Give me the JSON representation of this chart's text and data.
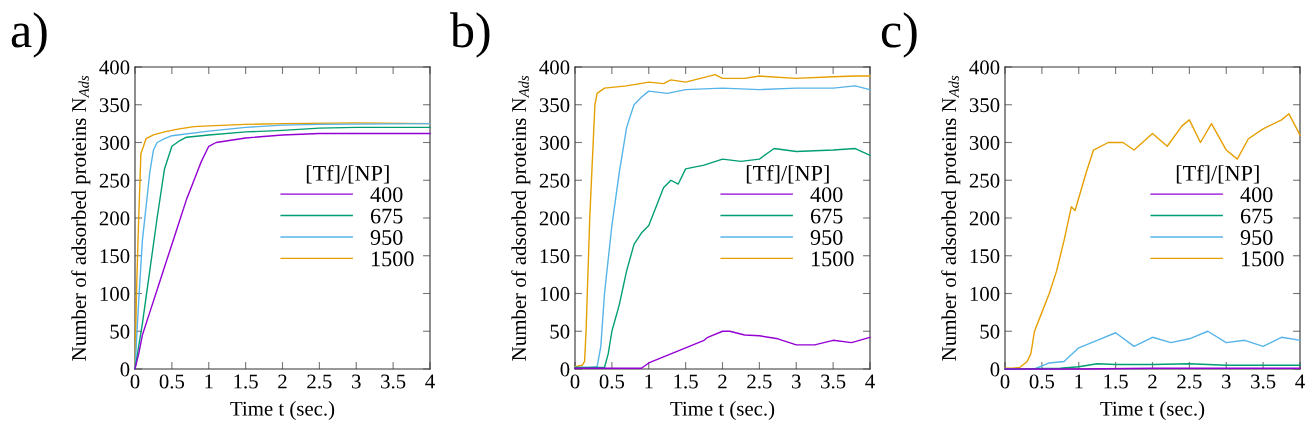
{
  "chart_data": [
    {
      "type": "line",
      "title": "a)",
      "xlabel": "Time t (sec.)",
      "ylabel": "Number of adsorbed proteins N$_{Ads}$",
      "legend_title": "[Tf]/[NP]",
      "legend": "right",
      "grid": false,
      "xlim": [
        0,
        4
      ],
      "xticks": [
        0,
        0.5,
        1,
        1.5,
        2,
        2.5,
        3,
        3.5,
        4
      ],
      "ylim": [
        0,
        400
      ],
      "yticks": [
        0,
        50,
        100,
        150,
        200,
        250,
        300,
        350,
        400
      ],
      "series": [
        {
          "name": "400",
          "color": "#9400d3",
          "x": [
            0,
            0.05,
            0.1,
            0.2,
            0.3,
            0.4,
            0.5,
            0.6,
            0.7,
            0.8,
            0.9,
            1.0,
            1.1,
            1.3,
            1.5,
            2,
            2.5,
            3,
            4
          ],
          "values": [
            0,
            20,
            45,
            75,
            105,
            135,
            165,
            195,
            225,
            250,
            275,
            295,
            300,
            303,
            306,
            310,
            312,
            312,
            312
          ]
        },
        {
          "name": "675",
          "color": "#009e73",
          "x": [
            0,
            0.1,
            0.2,
            0.3,
            0.4,
            0.5,
            0.6,
            0.7,
            1,
            1.5,
            2,
            2.5,
            3,
            4
          ],
          "values": [
            0,
            60,
            130,
            200,
            265,
            295,
            302,
            307,
            310,
            314,
            316,
            319,
            320,
            320
          ]
        },
        {
          "name": "950",
          "color": "#56b4e9",
          "x": [
            0,
            0.05,
            0.1,
            0.2,
            0.25,
            0.3,
            0.4,
            0.5,
            1,
            1.5,
            2,
            2.5,
            4
          ],
          "values": [
            0,
            90,
            170,
            260,
            290,
            300,
            305,
            309,
            315,
            320,
            323,
            324,
            325
          ]
        },
        {
          "name": "1500",
          "color": "#e69f00",
          "x": [
            0,
            0.02,
            0.05,
            0.08,
            0.15,
            0.25,
            0.4,
            0.6,
            0.8,
            1,
            1.5,
            2,
            3,
            4
          ],
          "values": [
            0,
            100,
            200,
            285,
            305,
            310,
            314,
            318,
            321,
            322,
            324,
            325,
            326,
            325
          ]
        }
      ]
    },
    {
      "type": "line",
      "title": "b)",
      "xlabel": "Time t (sec.)",
      "ylabel": "Number of adsorbed proteins N$_{Ads}$",
      "legend_title": "[Tf]/[NP]",
      "legend": "right",
      "grid": false,
      "xlim": [
        0,
        4
      ],
      "xticks": [
        0,
        0.5,
        1,
        1.5,
        2,
        2.5,
        3,
        3.5,
        4
      ],
      "ylim": [
        0,
        400
      ],
      "yticks": [
        0,
        50,
        100,
        150,
        200,
        250,
        300,
        350,
        400
      ],
      "series": [
        {
          "name": "400",
          "color": "#9400d3",
          "x": [
            0,
            0.5,
            0.75,
            0.9,
            1,
            1.25,
            1.5,
            1.75,
            1.8,
            2,
            2.1,
            2.3,
            2.5,
            2.75,
            3,
            3.25,
            3.5,
            3.75,
            4
          ],
          "values": [
            1,
            1,
            1,
            1,
            8,
            18,
            28,
            38,
            42,
            50,
            50,
            45,
            44,
            40,
            32,
            32,
            38,
            35,
            42
          ]
        },
        {
          "name": "675",
          "color": "#009e73",
          "x": [
            0,
            0.4,
            0.45,
            0.5,
            0.6,
            0.7,
            0.8,
            0.9,
            1,
            1.1,
            1.2,
            1.3,
            1.4,
            1.5,
            1.75,
            2,
            2.25,
            2.5,
            2.7,
            3,
            3.5,
            3.8,
            4
          ],
          "values": [
            2,
            2,
            20,
            50,
            85,
            130,
            165,
            180,
            190,
            215,
            240,
            250,
            245,
            265,
            270,
            278,
            275,
            278,
            292,
            288,
            290,
            292,
            283
          ]
        },
        {
          "name": "950",
          "color": "#56b4e9",
          "x": [
            0,
            0.2,
            0.3,
            0.35,
            0.4,
            0.5,
            0.6,
            0.7,
            0.8,
            0.9,
            1,
            1.25,
            1.5,
            2,
            2.5,
            3,
            3.5,
            3.8,
            4
          ],
          "values": [
            2,
            2,
            3,
            30,
            100,
            190,
            260,
            320,
            350,
            360,
            368,
            365,
            370,
            372,
            370,
            372,
            372,
            375,
            370
          ]
        },
        {
          "name": "1500",
          "color": "#e69f00",
          "x": [
            0,
            0.1,
            0.13,
            0.15,
            0.2,
            0.27,
            0.3,
            0.4,
            0.5,
            0.7,
            1,
            1.2,
            1.3,
            1.5,
            1.7,
            1.9,
            2,
            2.3,
            2.5,
            3,
            3.5,
            3.8,
            4
          ],
          "values": [
            3,
            5,
            10,
            50,
            200,
            350,
            365,
            372,
            373,
            375,
            380,
            378,
            383,
            380,
            385,
            390,
            385,
            385,
            388,
            385,
            387,
            388,
            388
          ]
        }
      ]
    },
    {
      "type": "line",
      "title": "c)",
      "xlabel": "Time t (sec.)",
      "ylabel": "Number of adsorbed proteins N$_{Ads}$",
      "legend_title": "[Tf]/[NP]",
      "legend": "right",
      "grid": false,
      "xlim": [
        0,
        4
      ],
      "xticks": [
        0,
        0.5,
        1,
        1.5,
        2,
        2.5,
        3,
        3.5,
        4
      ],
      "ylim": [
        0,
        400
      ],
      "yticks": [
        0,
        50,
        100,
        150,
        200,
        250,
        300,
        350,
        400
      ],
      "series": [
        {
          "name": "400",
          "color": "#9400d3",
          "x": [
            0,
            1,
            2,
            3,
            4
          ],
          "values": [
            0,
            0,
            1,
            1,
            1
          ]
        },
        {
          "name": "675",
          "color": "#009e73",
          "x": [
            0,
            0.75,
            1,
            1.25,
            1.5,
            2,
            2.5,
            3,
            3.5,
            4
          ],
          "values": [
            0,
            1,
            3,
            7,
            6,
            6,
            7,
            5,
            5,
            5
          ]
        },
        {
          "name": "950",
          "color": "#56b4e9",
          "x": [
            0,
            0.4,
            0.6,
            0.8,
            1,
            1.25,
            1.5,
            1.75,
            2,
            2.25,
            2.5,
            2.75,
            3,
            3.25,
            3.5,
            3.75,
            4
          ],
          "values": [
            0,
            0,
            8,
            10,
            28,
            38,
            48,
            30,
            42,
            35,
            40,
            50,
            35,
            38,
            30,
            42,
            38
          ]
        },
        {
          "name": "1500",
          "color": "#e69f00",
          "x": [
            0,
            0.1,
            0.2,
            0.3,
            0.35,
            0.4,
            0.5,
            0.6,
            0.7,
            0.8,
            0.9,
            0.95,
            1.1,
            1.2,
            1.4,
            1.6,
            1.75,
            2,
            2.2,
            2.4,
            2.5,
            2.65,
            2.8,
            3,
            3.15,
            3.3,
            3.5,
            3.75,
            3.85,
            4
          ],
          "values": [
            1,
            1,
            2,
            10,
            20,
            50,
            75,
            100,
            130,
            170,
            215,
            210,
            260,
            290,
            300,
            300,
            290,
            312,
            295,
            322,
            330,
            300,
            325,
            290,
            278,
            305,
            318,
            330,
            338,
            310
          ]
        }
      ]
    }
  ]
}
